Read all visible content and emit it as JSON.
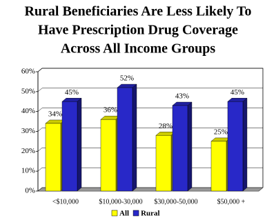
{
  "chart_data": {
    "type": "bar",
    "title": [
      "Rural Beneficiaries Are Less Likely To",
      "Have Prescription Drug Coverage",
      "Across All Income Groups"
    ],
    "categories": [
      "<$10,000",
      "$10,000-30,000",
      "$30,000-50,000",
      "$50,000 +"
    ],
    "series": [
      {
        "name": "All",
        "color": "#ffff00",
        "values": [
          34,
          36,
          28,
          25
        ],
        "value_labels": [
          "34%",
          "36%",
          "28%",
          "25%"
        ]
      },
      {
        "name": "Rural",
        "color": "#2828c8",
        "values": [
          45,
          52,
          43,
          45
        ],
        "value_labels": [
          "45%",
          "52%",
          "43%",
          "45%"
        ]
      }
    ],
    "ylim": [
      0,
      60
    ],
    "yticks": [
      {
        "value": 0,
        "label": "0%"
      },
      {
        "value": 10,
        "label": "10%"
      },
      {
        "value": 20,
        "label": "20%"
      },
      {
        "value": 30,
        "label": "30%"
      },
      {
        "value": 40,
        "label": "40%"
      },
      {
        "value": 50,
        "label": "50%"
      },
      {
        "value": 60,
        "label": "60%"
      }
    ],
    "grid": true
  }
}
